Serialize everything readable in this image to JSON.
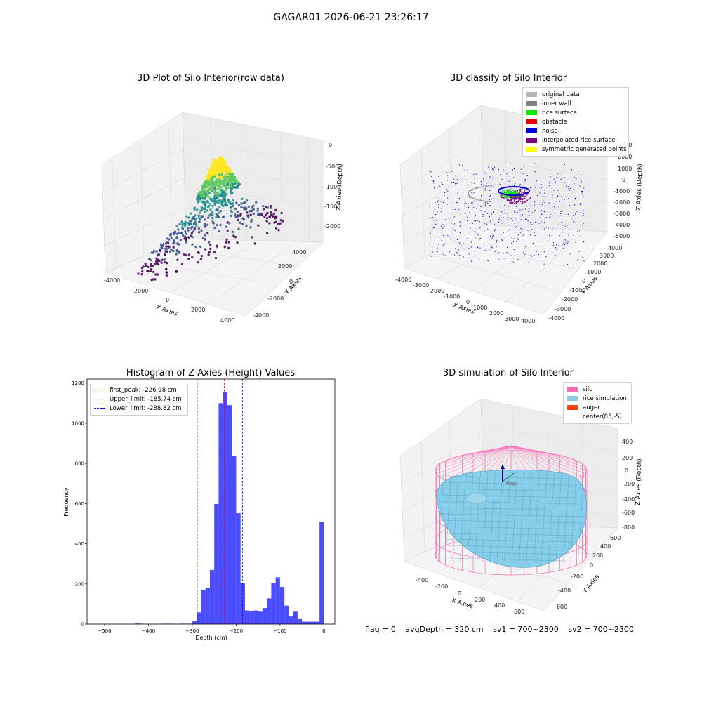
{
  "window_title": "GAGAR01 2026-06-21 23:26:17",
  "panels": {
    "raw": {
      "title": "3D Plot of Silo Interior(row data)",
      "xlabel": "X Axies",
      "ylabel": "Y Axies",
      "zlabel": "Z Axies (Depth)",
      "xticks": [
        "-4000",
        "-2000",
        "0",
        "2000",
        "4000"
      ],
      "yticks": [
        "-4000",
        "-2000",
        "0",
        "2000",
        "4000"
      ],
      "zticks": [
        "0",
        "-500",
        "-1000",
        "-1500",
        "-2000"
      ]
    },
    "classify": {
      "title": "3D classify of Silo Interior",
      "xlabel": "X Axies",
      "ylabel": "Y Axies",
      "zlabel": "Z Axies (Depth)",
      "xticks": [
        "-4000",
        "-3000",
        "-2000",
        "-1000",
        "0",
        "1000",
        "2000",
        "3000",
        "4000"
      ],
      "yticks": [
        "-4000",
        "-3000",
        "-2000",
        "-1000",
        "0",
        "1000",
        "2000",
        "3000",
        "4000"
      ],
      "zticks": [
        "3000",
        "2000",
        "1000",
        "0",
        "-1000",
        "-2000",
        "-3000",
        "-4000",
        "-5000"
      ],
      "legend": [
        {
          "label": "original data",
          "color": "#b4b4b4"
        },
        {
          "label": "inner wall",
          "color": "#808080"
        },
        {
          "label": "rice surface",
          "color": "#00ee00"
        },
        {
          "label": "obstacle",
          "color": "#ee0000"
        },
        {
          "label": "noise",
          "color": "#0000dd"
        },
        {
          "label": "interpolated rice surface",
          "color": "#800080"
        },
        {
          "label": "symmetric generated points",
          "color": "#ffff00"
        }
      ]
    },
    "histogram": {
      "title": "Histogram of Z-Axies (Height) Values",
      "xlabel": "Depth (cm)",
      "ylabel": "Frequency",
      "legend": [
        {
          "label": "first_peak: -226.98 cm",
          "color": "#ff0000"
        },
        {
          "label": "Upper_limit: -185.74 cm",
          "color": "#0000ff"
        },
        {
          "label": "Lower_limit: -288.82 cm",
          "color": "#0000ff"
        }
      ]
    },
    "simulation": {
      "title": "3D simulation of Silo Interior",
      "xlabel": "X Axies",
      "ylabel": "Y Axies",
      "zlabel": "Z Axies (Depth)",
      "xticks": [
        "-400",
        "-200",
        "0",
        "200",
        "400",
        "600"
      ],
      "yticks": [
        "-600",
        "-400",
        "-200",
        "0",
        "200",
        "400",
        "600"
      ],
      "zticks": [
        "400",
        "200",
        "0",
        "-200",
        "-400",
        "-600",
        "-800"
      ],
      "legend": [
        {
          "label": "silo",
          "color": "#ff69b4"
        },
        {
          "label": "rice simulation",
          "color": "#87ceeb"
        },
        {
          "label": "auger",
          "color": "#ff4500"
        },
        {
          "label": "center(85,-5)",
          "color": "#ffffff"
        }
      ]
    }
  },
  "footer": {
    "flag": "flag = 0",
    "avg": "avgDepth = 320 cm",
    "sv1": "sv1 = 700~2300",
    "sv2": "sv2 = 700~2300"
  },
  "chart_data": [
    {
      "type": "histogram",
      "title": "Histogram of Z-Axies (Height) Values",
      "xlabel": "Depth (cm)",
      "ylabel": "Frequency",
      "xlim": [
        -540,
        25
      ],
      "ylim": [
        0,
        1220
      ],
      "xticks": [
        -500,
        -400,
        -300,
        -200,
        -100,
        0
      ],
      "yticks": [
        0,
        200,
        400,
        600,
        800,
        1000,
        1200
      ],
      "bar_color": "#0000ff",
      "bins": [
        {
          "x0": -430,
          "x1": -420,
          "count": 3
        },
        {
          "x0": -420,
          "x1": -410,
          "count": 2
        },
        {
          "x0": -370,
          "x1": -340,
          "count": 2
        },
        {
          "x0": -330,
          "x1": -300,
          "count": 2
        },
        {
          "x0": -300,
          "x1": -290,
          "count": 15
        },
        {
          "x0": -290,
          "x1": -280,
          "count": 58
        },
        {
          "x0": -280,
          "x1": -270,
          "count": 170
        },
        {
          "x0": -270,
          "x1": -260,
          "count": 182
        },
        {
          "x0": -260,
          "x1": -250,
          "count": 270
        },
        {
          "x0": -250,
          "x1": -240,
          "count": 598
        },
        {
          "x0": -240,
          "x1": -230,
          "count": 1100
        },
        {
          "x0": -230,
          "x1": -220,
          "count": 1155
        },
        {
          "x0": -220,
          "x1": -210,
          "count": 1090
        },
        {
          "x0": -210,
          "x1": -200,
          "count": 838
        },
        {
          "x0": -200,
          "x1": -190,
          "count": 552
        },
        {
          "x0": -190,
          "x1": -180,
          "count": 205
        },
        {
          "x0": -180,
          "x1": -170,
          "count": 68
        },
        {
          "x0": -170,
          "x1": -160,
          "count": 64
        },
        {
          "x0": -160,
          "x1": -150,
          "count": 68
        },
        {
          "x0": -150,
          "x1": -140,
          "count": 62
        },
        {
          "x0": -140,
          "x1": -130,
          "count": 80
        },
        {
          "x0": -130,
          "x1": -120,
          "count": 128
        },
        {
          "x0": -120,
          "x1": -110,
          "count": 205
        },
        {
          "x0": -110,
          "x1": -100,
          "count": 233
        },
        {
          "x0": -100,
          "x1": -90,
          "count": 185
        },
        {
          "x0": -90,
          "x1": -80,
          "count": 92
        },
        {
          "x0": -80,
          "x1": -70,
          "count": 38
        },
        {
          "x0": -70,
          "x1": -60,
          "count": 62
        },
        {
          "x0": -60,
          "x1": -50,
          "count": 25
        },
        {
          "x0": -50,
          "x1": -40,
          "count": 12
        },
        {
          "x0": -40,
          "x1": -30,
          "count": 12
        },
        {
          "x0": -30,
          "x1": -20,
          "count": 12
        },
        {
          "x0": -20,
          "x1": -10,
          "count": 12
        },
        {
          "x0": -10,
          "x1": 0,
          "count": 508
        }
      ],
      "vlines": [
        {
          "x": -226.98,
          "color": "#ff0000"
        },
        {
          "x": -185.74,
          "color": "#0000ff"
        },
        {
          "x": -288.82,
          "color": "#0000ff"
        }
      ]
    }
  ]
}
